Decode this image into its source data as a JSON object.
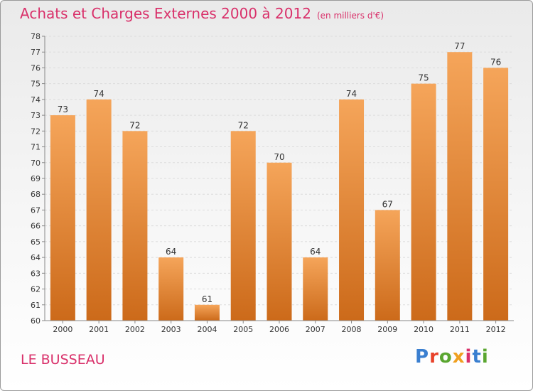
{
  "header": {
    "title": "Achats et Charges Externes 2000 à 2012",
    "unit_note": "(en milliers d'€)"
  },
  "footer": {
    "place": "LE BUSSEAU",
    "brand": "Proxiti",
    "brand_colors": [
      "#3a7fd0",
      "#e8422a",
      "#5aa630",
      "#f0a020",
      "#d9306a",
      "#3a7fd0",
      "#5aa630"
    ]
  },
  "chart_data": {
    "type": "bar",
    "categories": [
      "2000",
      "2001",
      "2002",
      "2003",
      "2004",
      "2005",
      "2006",
      "2007",
      "2008",
      "2009",
      "2010",
      "2011",
      "2012"
    ],
    "values": [
      73,
      74,
      72,
      64,
      61,
      72,
      70,
      64,
      74,
      67,
      75,
      77,
      76
    ],
    "ylim": [
      60,
      78
    ],
    "yticks": [
      60,
      61,
      62,
      63,
      64,
      65,
      66,
      67,
      68,
      69,
      70,
      71,
      72,
      73,
      74,
      75,
      76,
      77,
      78
    ],
    "grid": true,
    "bar_color_top": "#f5a55a",
    "bar_color_bottom": "#cc6a1a",
    "title_color": "#d9306a"
  }
}
